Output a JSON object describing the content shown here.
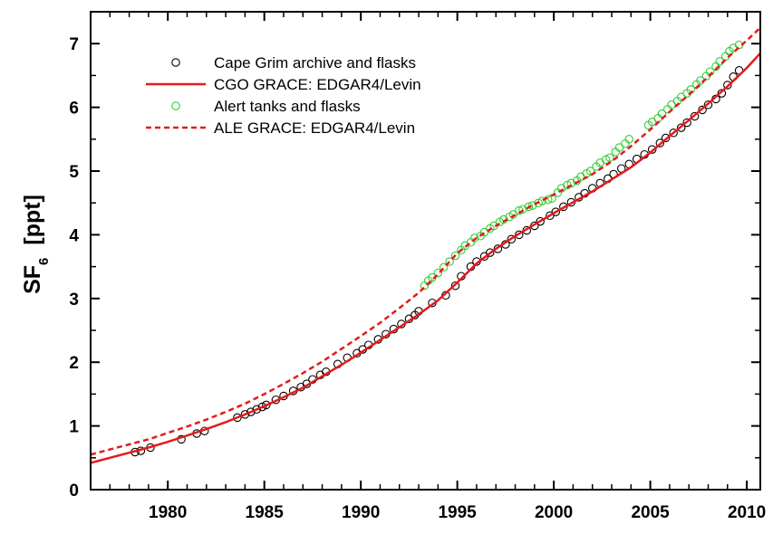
{
  "chart_data": {
    "type": "line",
    "title": "",
    "xlabel": "",
    "ylabel": {
      "base": "SF",
      "subscript": "6",
      "unit": "[ppt]"
    },
    "xlim": [
      1976,
      2010.7
    ],
    "ylim": [
      0,
      7.5
    ],
    "x_ticks": [
      1980,
      1985,
      1990,
      1995,
      2000,
      2005,
      2010
    ],
    "y_ticks": [
      0,
      1,
      2,
      3,
      4,
      5,
      6,
      7
    ],
    "grid": false,
    "legend_position": "top-left",
    "series": [
      {
        "name": "Cape Grim archive and flasks",
        "kind": "scatter",
        "marker": "open-circle",
        "color": "#000000",
        "x": [
          1978.3,
          1978.6,
          1979.1,
          1980.7,
          1981.5,
          1981.9,
          1983.6,
          1984.0,
          1984.3,
          1984.6,
          1984.9,
          1985.1,
          1985.6,
          1986.0,
          1986.5,
          1986.9,
          1987.2,
          1987.5,
          1987.9,
          1988.2,
          1988.8,
          1989.3,
          1989.8,
          1990.1,
          1990.4,
          1990.9,
          1991.3,
          1991.7,
          1992.1,
          1992.5,
          1992.8,
          1993.0,
          1993.7,
          1994.4,
          1994.9,
          1995.2,
          1995.7,
          1996.0,
          1996.4,
          1996.7,
          1997.1,
          1997.5,
          1997.8,
          1998.2,
          1998.6,
          1999.0,
          1999.3,
          1999.8,
          2000.1,
          2000.5,
          2000.9,
          2001.3,
          2001.6,
          2002.0,
          2002.4,
          2002.8,
          2003.1,
          2003.5,
          2003.9,
          2004.3,
          2004.7,
          2005.1,
          2005.5,
          2005.8,
          2006.2,
          2006.6,
          2006.9,
          2007.3,
          2007.7,
          2008.0,
          2008.4,
          2008.7,
          2009.0,
          2009.3,
          2009.6
        ],
        "y": [
          0.59,
          0.61,
          0.66,
          0.79,
          0.88,
          0.92,
          1.13,
          1.18,
          1.22,
          1.26,
          1.3,
          1.33,
          1.41,
          1.47,
          1.55,
          1.61,
          1.66,
          1.73,
          1.8,
          1.85,
          1.97,
          2.07,
          2.14,
          2.2,
          2.27,
          2.36,
          2.44,
          2.52,
          2.6,
          2.68,
          2.74,
          2.8,
          2.93,
          3.05,
          3.2,
          3.35,
          3.5,
          3.58,
          3.66,
          3.72,
          3.78,
          3.85,
          3.93,
          4.0,
          4.07,
          4.14,
          4.21,
          4.3,
          4.36,
          4.44,
          4.51,
          4.59,
          4.65,
          4.73,
          4.81,
          4.88,
          4.95,
          5.04,
          5.11,
          5.19,
          5.26,
          5.34,
          5.44,
          5.52,
          5.6,
          5.68,
          5.76,
          5.86,
          5.96,
          6.04,
          6.13,
          6.22,
          6.35,
          6.48,
          6.58
        ]
      },
      {
        "name": "CGO GRACE: EDGAR4/Levin",
        "kind": "line",
        "style": "solid",
        "color": "#e41a1c",
        "x": [
          1976.0,
          1977.0,
          1978.0,
          1979.0,
          1980.0,
          1981.0,
          1982.0,
          1983.0,
          1984.0,
          1985.0,
          1986.0,
          1987.0,
          1988.0,
          1989.0,
          1990.0,
          1991.0,
          1992.0,
          1993.0,
          1994.0,
          1995.0,
          1996.0,
          1997.0,
          1998.0,
          1999.0,
          2000.0,
          2001.0,
          2002.0,
          2003.0,
          2004.0,
          2005.0,
          2006.0,
          2007.0,
          2008.0,
          2009.0,
          2010.0,
          2010.7
        ],
        "y": [
          0.42,
          0.5,
          0.58,
          0.66,
          0.75,
          0.85,
          0.95,
          1.06,
          1.18,
          1.31,
          1.45,
          1.6,
          1.78,
          1.96,
          2.15,
          2.35,
          2.55,
          2.75,
          2.97,
          3.25,
          3.55,
          3.78,
          3.98,
          4.16,
          4.34,
          4.51,
          4.68,
          4.87,
          5.06,
          5.29,
          5.55,
          5.8,
          6.06,
          6.33,
          6.62,
          6.85
        ]
      },
      {
        "name": "Alert tanks and flasks",
        "kind": "scatter",
        "marker": "open-circle",
        "color": "#33cc33",
        "x": [
          1993.3,
          1993.5,
          1993.7,
          1994.0,
          1994.3,
          1994.6,
          1994.9,
          1995.2,
          1995.4,
          1995.7,
          1995.9,
          1996.2,
          1996.4,
          1996.7,
          1996.9,
          1997.2,
          1997.4,
          1997.7,
          1997.9,
          1998.2,
          1998.4,
          1998.7,
          1998.9,
          1999.2,
          1999.4,
          1999.7,
          1999.9,
          2000.2,
          2000.4,
          2000.7,
          2000.9,
          2001.2,
          2001.4,
          2001.7,
          2001.9,
          2002.2,
          2002.4,
          2002.7,
          2002.9,
          2003.2,
          2003.4,
          2003.7,
          2003.9,
          2004.9,
          2005.1,
          2005.4,
          2005.6,
          2005.9,
          2006.1,
          2006.4,
          2006.6,
          2006.9,
          2007.1,
          2007.4,
          2007.6,
          2007.9,
          2008.1,
          2008.4,
          2008.6,
          2008.9,
          2009.1,
          2009.3,
          2009.6
        ],
        "y": [
          3.2,
          3.28,
          3.33,
          3.4,
          3.49,
          3.58,
          3.67,
          3.76,
          3.83,
          3.88,
          3.95,
          3.98,
          4.04,
          4.1,
          4.14,
          4.2,
          4.24,
          4.28,
          4.32,
          4.38,
          4.4,
          4.44,
          4.46,
          4.5,
          4.53,
          4.55,
          4.57,
          4.66,
          4.73,
          4.78,
          4.81,
          4.85,
          4.91,
          4.96,
          5.0,
          5.07,
          5.13,
          5.18,
          5.21,
          5.3,
          5.37,
          5.43,
          5.5,
          5.72,
          5.77,
          5.83,
          5.9,
          5.97,
          6.04,
          6.1,
          6.16,
          6.22,
          6.28,
          6.36,
          6.42,
          6.49,
          6.56,
          6.64,
          6.72,
          6.8,
          6.88,
          6.93,
          6.98
        ]
      },
      {
        "name": "ALE GRACE: EDGAR4/Levin",
        "kind": "line",
        "style": "dashed",
        "color": "#e41a1c",
        "x": [
          1976.0,
          1977.0,
          1978.0,
          1979.0,
          1980.0,
          1981.0,
          1982.0,
          1983.0,
          1984.0,
          1985.0,
          1986.0,
          1987.0,
          1988.0,
          1989.0,
          1990.0,
          1991.0,
          1992.0,
          1993.0,
          1994.0,
          1995.0,
          1996.0,
          1997.0,
          1998.0,
          1999.0,
          2000.0,
          2001.0,
          2002.0,
          2003.0,
          2004.0,
          2005.0,
          2006.0,
          2007.0,
          2008.0,
          2009.0,
          2010.0,
          2010.7
        ],
        "y": [
          0.55,
          0.63,
          0.71,
          0.79,
          0.89,
          0.99,
          1.1,
          1.22,
          1.35,
          1.5,
          1.66,
          1.83,
          2.01,
          2.21,
          2.41,
          2.62,
          2.85,
          3.09,
          3.38,
          3.71,
          3.95,
          4.14,
          4.31,
          4.48,
          4.63,
          4.79,
          4.95,
          5.15,
          5.39,
          5.65,
          5.93,
          6.2,
          6.48,
          6.78,
          7.05,
          7.25
        ]
      }
    ]
  }
}
